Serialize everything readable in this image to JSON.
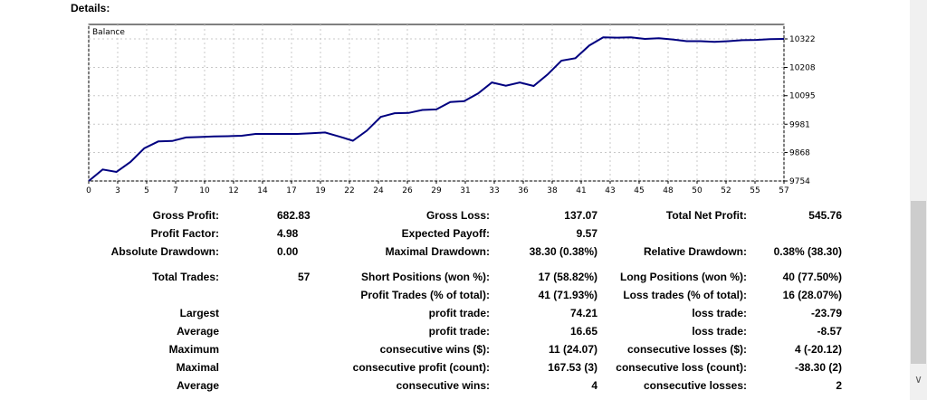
{
  "details_title": "Details:",
  "chart_data": {
    "type": "line",
    "legend": "Balance",
    "x_ticks": [
      "0",
      "3",
      "5",
      "7",
      "10",
      "12",
      "14",
      "17",
      "19",
      "22",
      "24",
      "26",
      "29",
      "31",
      "33",
      "36",
      "38",
      "41",
      "43",
      "45",
      "48",
      "50",
      "52",
      "55",
      "57"
    ],
    "y_ticks": [
      10322,
      10208,
      10095,
      9981,
      9868,
      9754
    ],
    "ylim": [
      9754,
      10322
    ],
    "xlim": [
      0,
      57
    ],
    "grid": true,
    "line_color": "#000080",
    "series": [
      {
        "values": [
          9754,
          9800,
          9790,
          9830,
          9885,
          9912,
          9914,
          9928,
          9930,
          9932,
          9933,
          9935,
          9942,
          9942,
          9942,
          9942,
          9945,
          9948,
          9932,
          9915,
          9955,
          10010,
          10025,
          10026,
          10038,
          10040,
          10070,
          10073,
          10104,
          10148,
          10135,
          10148,
          10134,
          10180,
          10235,
          10245,
          10296,
          10328,
          10327,
          10328,
          10322,
          10325,
          10320,
          10313,
          10313,
          10310,
          10313,
          10317,
          10318,
          10321,
          10322
        ]
      }
    ]
  },
  "stats": {
    "gross_profit_label": "Gross Profit:",
    "gross_profit": "682.83",
    "gross_loss_label": "Gross Loss:",
    "gross_loss": "137.07",
    "total_net_profit_label": "Total Net Profit:",
    "total_net_profit": "545.76",
    "profit_factor_label": "Profit Factor:",
    "profit_factor": "4.98",
    "expected_payoff_label": "Expected Payoff:",
    "expected_payoff": "9.57",
    "absolute_drawdown_label": "Absolute Drawdown:",
    "absolute_drawdown": "0.00",
    "maximal_drawdown_label": "Maximal Drawdown:",
    "maximal_drawdown": "38.30 (0.38%)",
    "relative_drawdown_label": "Relative Drawdown:",
    "relative_drawdown": "0.38% (38.30)",
    "total_trades_label": "Total Trades:",
    "total_trades": "57",
    "short_positions_label": "Short Positions (won %):",
    "short_positions": "17 (58.82%)",
    "long_positions_label": "Long Positions (won %):",
    "long_positions": "40 (77.50%)",
    "profit_trades_label": "Profit Trades (% of total):",
    "profit_trades": "41 (71.93%)",
    "loss_trades_label": "Loss trades (% of total):",
    "loss_trades": "16 (28.07%)",
    "largest_label": "Largest",
    "largest_profit_label": "profit trade:",
    "largest_profit": "74.21",
    "largest_loss_label": "loss trade:",
    "largest_loss": "-23.79",
    "average_label": "Average",
    "average_profit_label": "profit trade:",
    "average_profit": "16.65",
    "average_loss_label": "loss trade:",
    "average_loss": "-8.57",
    "maximum_label": "Maximum",
    "max_cons_wins_label": "consecutive wins ($):",
    "max_cons_wins": "11 (24.07)",
    "max_cons_losses_label": "consecutive losses ($):",
    "max_cons_losses": "4 (-20.12)",
    "maximal_label": "Maximal",
    "maximal_cons_profit_label": "consecutive profit (count):",
    "maximal_cons_profit": "167.53 (3)",
    "maximal_cons_loss_label": "consecutive loss (count):",
    "maximal_cons_loss": "-38.30 (2)",
    "average2_label": "Average",
    "avg_cons_wins_label": "consecutive wins:",
    "avg_cons_wins": "4",
    "avg_cons_losses_label": "consecutive losses:",
    "avg_cons_losses": "2"
  }
}
